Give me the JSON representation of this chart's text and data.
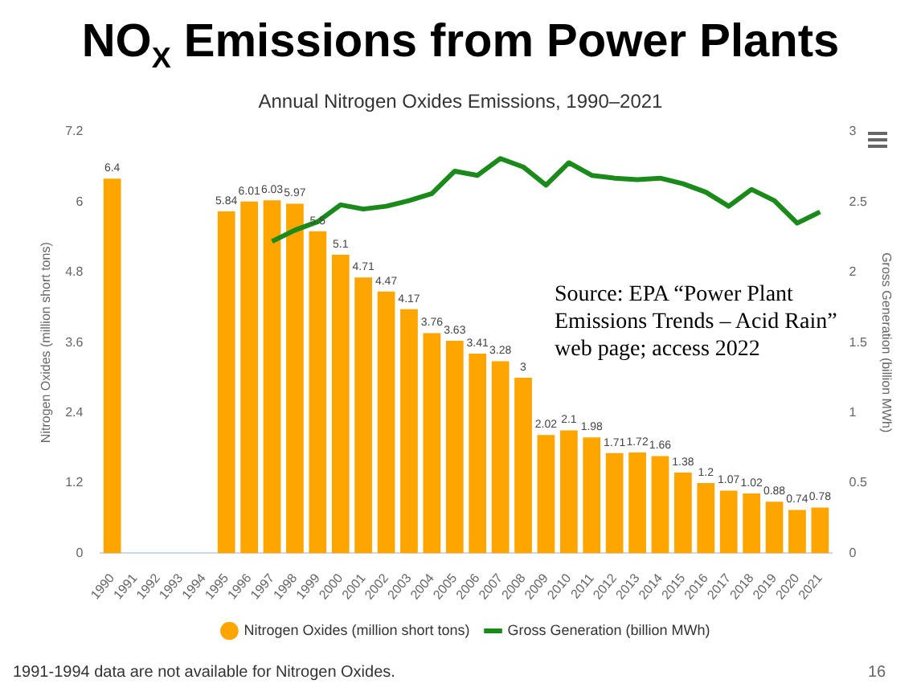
{
  "chart_data": {
    "type": "bar",
    "title": "NO$_{X}$ Emissions from Power Plants",
    "subtitle": "Annual Nitrogen Oxides Emissions, 1990–2021",
    "ylabel": "Nitrogen Oxides (million short tons)",
    "y2label": "Gross Generation (billion MWh)",
    "categories": [
      "1990",
      "1991",
      "1992",
      "1993",
      "1994",
      "1995",
      "1996",
      "1997",
      "1998",
      "1999",
      "2000",
      "2001",
      "2002",
      "2003",
      "2004",
      "2005",
      "2006",
      "2007",
      "2008",
      "2009",
      "2010",
      "2011",
      "2012",
      "2013",
      "2014",
      "2015",
      "2016",
      "2017",
      "2018",
      "2019",
      "2020",
      "2021"
    ],
    "series": [
      {
        "name": "Nitrogen Oxides (million short tons)",
        "color": "#ffa500",
        "values": [
          6.4,
          null,
          null,
          null,
          null,
          5.84,
          6.01,
          6.03,
          5.97,
          5.5,
          5.1,
          4.71,
          4.47,
          4.17,
          3.76,
          3.63,
          3.41,
          3.28,
          3,
          2.02,
          2.1,
          1.98,
          1.71,
          1.72,
          1.66,
          1.38,
          1.2,
          1.07,
          1.02,
          0.88,
          0.74,
          0.78
        ],
        "value_labels": [
          "6.4",
          null,
          null,
          null,
          null,
          "5.84",
          "6.01",
          "6.03",
          "5.97",
          "5.5",
          "5.1",
          "4.71",
          "4.47",
          "4.17",
          "3.76",
          "3.63",
          "3.41",
          "3.28",
          "3",
          "2.02",
          "2.1",
          "1.98",
          "1.71",
          "1.72",
          "1.66",
          "1.38",
          "1.2",
          "1.07",
          "1.02",
          "0.88",
          "0.74",
          "0.78"
        ]
      },
      {
        "name": "Gross Generation (billion MWh)",
        "type": "line",
        "axis": "y2",
        "color": "#1a8a1a",
        "values": [
          null,
          null,
          null,
          null,
          null,
          null,
          null,
          2.22,
          2.3,
          2.36,
          2.48,
          2.45,
          2.47,
          2.51,
          2.56,
          2.72,
          2.69,
          2.81,
          2.75,
          2.62,
          2.78,
          2.69,
          2.67,
          2.66,
          2.67,
          2.63,
          2.57,
          2.47,
          2.59,
          2.51,
          2.35,
          2.43
        ]
      }
    ],
    "ylim": [
      0,
      7.2
    ],
    "yticks": [
      0,
      1.2,
      2.4,
      3.6,
      4.8,
      6,
      7.2
    ],
    "y2lim": [
      0,
      3
    ],
    "y2ticks": [
      0,
      0.5,
      1,
      1.5,
      2,
      2.5,
      3
    ],
    "grid": false,
    "legend": "bottom",
    "marker": "none",
    "line_style": "solid",
    "annotations": [
      "Source: EPA “Power Plant Emissions Trends – Acid Rain” web page; access 2022",
      "1991-1994 data are not available for Nitrogen Oxides.",
      "16"
    ]
  }
}
